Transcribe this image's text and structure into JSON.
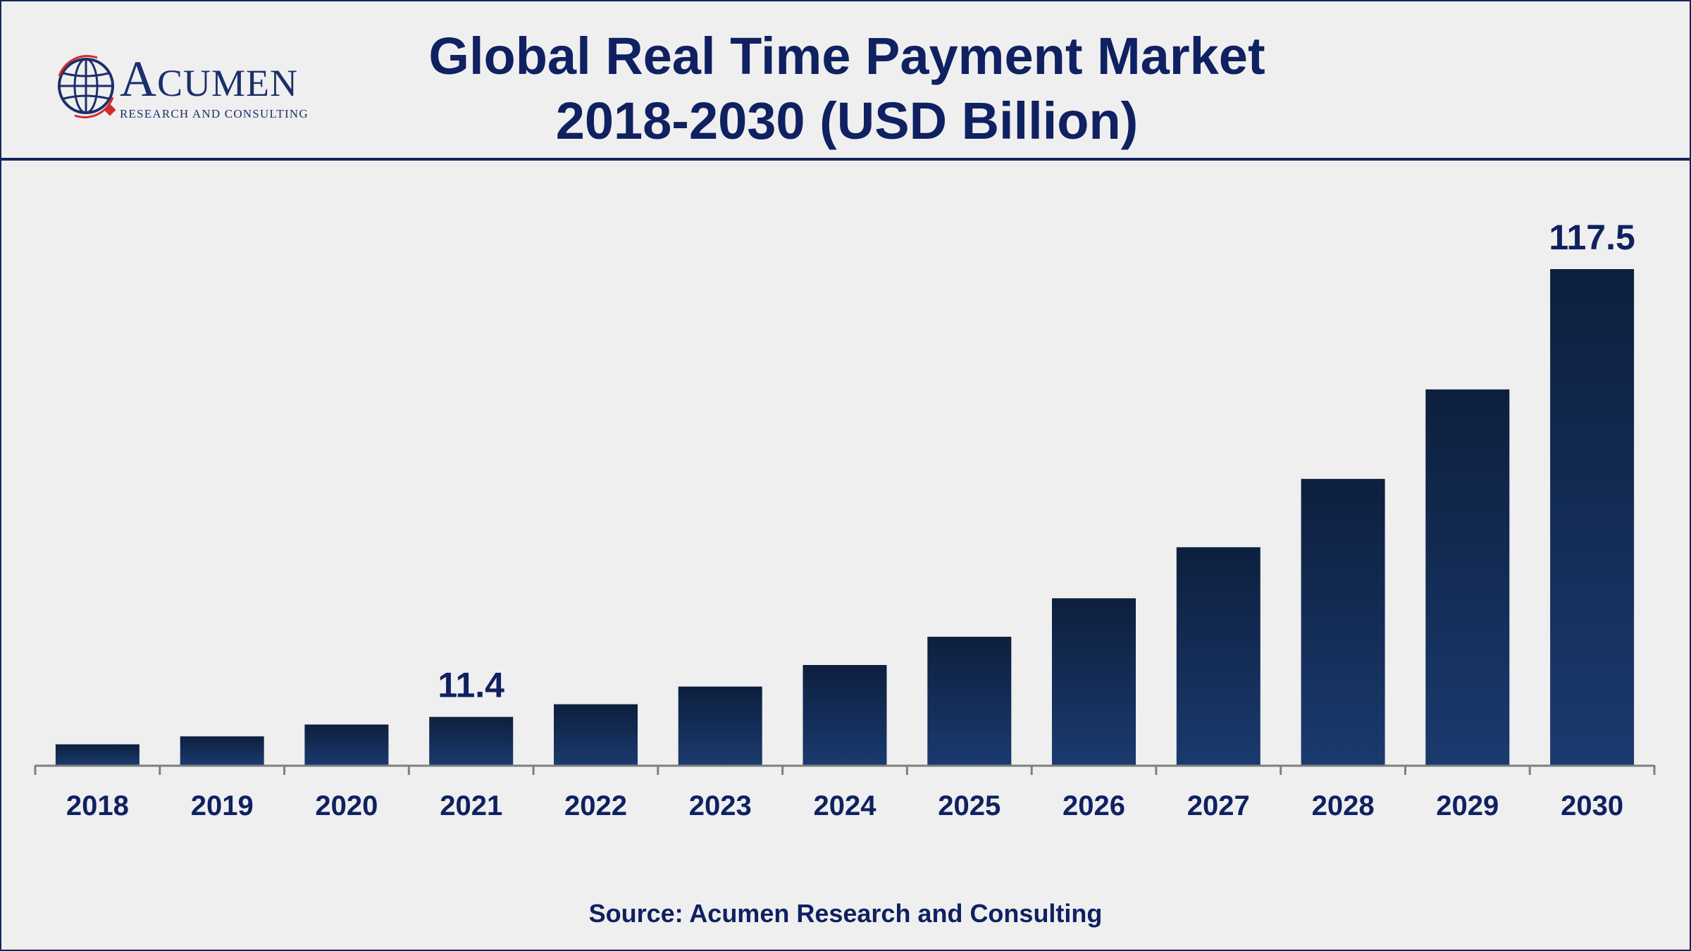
{
  "header": {
    "logo": {
      "name_initial": "A",
      "name_rest": "CUMEN",
      "tagline": "RESEARCH AND CONSULTING"
    },
    "title_line1": "Global Real Time Payment Market",
    "title_line2": "2018-2030 (USD Billion)"
  },
  "colors": {
    "bar_top": "#0d1f3e",
    "bar_bottom": "#1a3a6e",
    "text": "#0f2161",
    "axis": "#7f7f7f"
  },
  "chart_data": {
    "type": "bar",
    "title": "Global Real Time Payment Market 2018-2030 (USD Billion)",
    "xlabel": "",
    "ylabel": "",
    "categories": [
      "2018",
      "2019",
      "2020",
      "2021",
      "2022",
      "2023",
      "2024",
      "2025",
      "2026",
      "2027",
      "2028",
      "2029",
      "2030"
    ],
    "series": [
      {
        "values": [
          4.9,
          6.8,
          9.6,
          11.4,
          14.4,
          18.6,
          23.7,
          30.4,
          39.5,
          51.6,
          67.8,
          89.0,
          117.5
        ]
      }
    ],
    "data_labels": [
      {
        "category": "2021",
        "text": "11.4"
      },
      {
        "category": "2030",
        "text": "117.5"
      }
    ],
    "ylim": [
      0,
      117.5
    ],
    "grid": false,
    "legend": "none"
  },
  "footer": {
    "source": "Source: Acumen Research and Consulting"
  }
}
